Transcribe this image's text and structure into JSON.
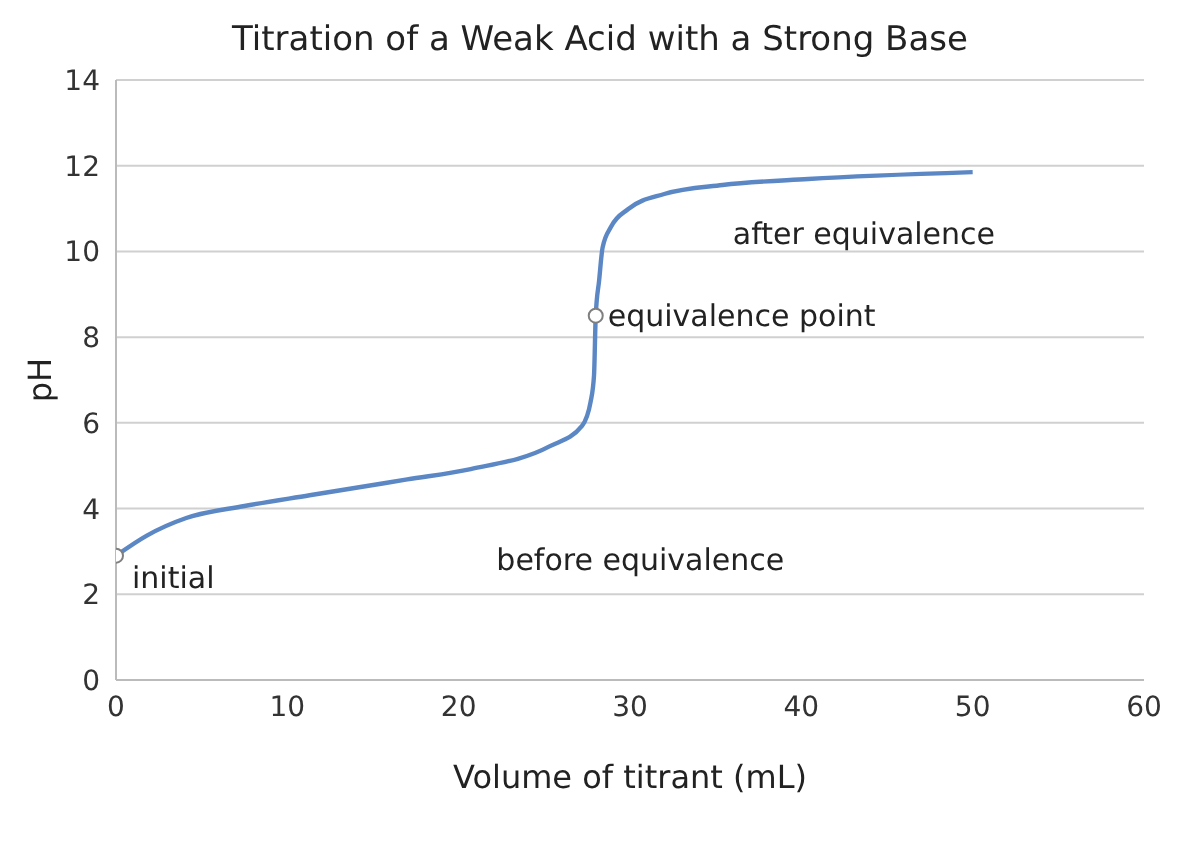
{
  "chart_data": {
    "type": "line",
    "title": "Titration of a Weak Acid with a Strong Base",
    "xlabel": "Volume of titrant (mL)",
    "ylabel": "pH",
    "series": [
      {
        "type": "line",
        "color": "#5b87c5",
        "x": [
          0,
          1.8,
          4.1,
          7.5,
          11.3,
          17,
          20.7,
          25.3,
          27.2,
          27.7,
          27.9,
          28,
          28.2,
          28.4,
          28.9,
          29.9,
          32,
          35.4,
          40.4,
          50
        ],
        "values": [
          2.9,
          3.37,
          3.78,
          4.06,
          4.31,
          4.68,
          4.92,
          5.45,
          5.93,
          6.49,
          7.11,
          8.5,
          9.33,
          10.09,
          10.58,
          10.99,
          11.34,
          11.55,
          11.69,
          11.85
        ]
      },
      {
        "type": "scatter",
        "color": "#ffffff",
        "marker": "circle",
        "x": [
          0,
          28
        ],
        "values": [
          2.9,
          8.5
        ]
      }
    ],
    "annotations": [
      {
        "text": "initial",
        "x": 0,
        "y": 2.9
      },
      {
        "text": "equivalence point",
        "x": 28,
        "y": 8.5
      },
      "before equivalence",
      "after equivalence"
    ],
    "xlim": [
      0,
      60
    ],
    "xticks": [
      0,
      10,
      20,
      30,
      40,
      50,
      60
    ],
    "ylim": [
      0,
      14
    ],
    "yticks": [
      0,
      2,
      4,
      6,
      8,
      10,
      12,
      14
    ],
    "grid": "y",
    "legend": false
  }
}
